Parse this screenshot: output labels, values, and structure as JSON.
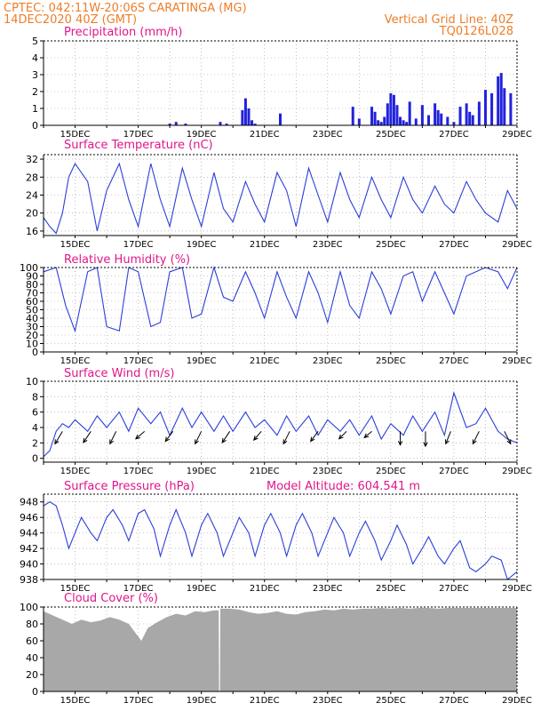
{
  "header": {
    "line1_left": "CPTEC:   042:11W-20:06S   CARATINGA (MG)",
    "line2_left": "14DEC2020 40Z (GMT)",
    "line2_right": "Vertical Grid Line: 40Z",
    "line3_right": "TQ0126L028"
  },
  "colors": {
    "header": "#ee7d2a",
    "title": "#e0168b",
    "line": "#2b3fd8",
    "bar": "#2222dd",
    "cloud": "#a8a8a8",
    "arrow": "#000000"
  },
  "x_tick_labels": [
    "15DEC",
    "17DEC",
    "19DEC",
    "21DEC",
    "23DEC",
    "25DEC",
    "27DEC",
    "29DEC"
  ],
  "chart_data": [
    {
      "id": "precip",
      "type": "bar",
      "title": "Precipitation (mm/h)",
      "x_range": [
        0,
        15
      ],
      "ylim": [
        0,
        5
      ],
      "yticks": [
        0,
        1,
        2,
        3,
        4,
        5
      ],
      "x": [
        4.0,
        4.2,
        4.5,
        5.6,
        5.8,
        6.3,
        6.4,
        6.5,
        6.6,
        6.7,
        7.5,
        9.8,
        10.0,
        10.4,
        10.5,
        10.6,
        10.7,
        10.8,
        10.9,
        11.0,
        11.1,
        11.2,
        11.3,
        11.4,
        11.5,
        11.6,
        11.8,
        12.0,
        12.2,
        12.4,
        12.5,
        12.6,
        12.8,
        13.0,
        13.2,
        13.4,
        13.5,
        13.6,
        13.8,
        14.0,
        14.2,
        14.4,
        14.5,
        14.6,
        14.8
      ],
      "values": [
        0.1,
        0.2,
        0.1,
        0.2,
        0.1,
        0.9,
        1.6,
        1.0,
        0.3,
        0.1,
        0.7,
        1.1,
        0.4,
        1.1,
        0.8,
        0.3,
        0.2,
        0.5,
        1.3,
        1.9,
        1.8,
        1.2,
        0.5,
        0.3,
        0.2,
        1.4,
        0.4,
        1.2,
        0.6,
        1.3,
        0.9,
        0.7,
        0.5,
        0.2,
        1.1,
        1.3,
        0.8,
        0.6,
        1.4,
        2.1,
        1.9,
        2.9,
        3.1,
        2.2,
        1.9
      ]
    },
    {
      "id": "temp",
      "type": "line",
      "title": "Surface Temperature (nC)",
      "x_range": [
        0,
        15
      ],
      "ylim": [
        15,
        33
      ],
      "yticks": [
        16,
        20,
        24,
        28,
        32
      ],
      "x": [
        0.0,
        0.2,
        0.4,
        0.6,
        0.8,
        1.0,
        1.4,
        1.7,
        2.0,
        2.4,
        2.7,
        3.0,
        3.4,
        3.7,
        4.0,
        4.4,
        4.7,
        5.0,
        5.4,
        5.7,
        6.0,
        6.4,
        6.7,
        7.0,
        7.4,
        7.7,
        8.0,
        8.4,
        8.7,
        9.0,
        9.4,
        9.7,
        10.0,
        10.4,
        10.7,
        11.0,
        11.4,
        11.7,
        12.0,
        12.4,
        12.7,
        13.0,
        13.4,
        13.7,
        14.0,
        14.4,
        14.7,
        15.0
      ],
      "values": [
        19,
        17,
        15.5,
        20,
        28,
        31,
        27,
        16,
        25,
        31,
        23,
        17,
        31,
        23,
        17,
        30,
        23,
        17,
        29,
        21,
        18,
        27,
        22,
        18,
        29,
        25,
        17,
        30,
        24,
        18,
        29,
        23,
        19,
        28,
        23,
        19,
        28,
        23,
        20,
        26,
        22,
        20,
        27,
        23,
        20,
        18,
        25,
        21
      ]
    },
    {
      "id": "rh",
      "type": "line",
      "title": "Relative Humidity (%)",
      "x_range": [
        0,
        15
      ],
      "ylim": [
        0,
        100
      ],
      "yticks": [
        0,
        10,
        20,
        30,
        40,
        50,
        60,
        70,
        80,
        90,
        100
      ],
      "x": [
        0.0,
        0.4,
        0.7,
        1.0,
        1.4,
        1.7,
        2.0,
        2.4,
        2.7,
        3.0,
        3.4,
        3.7,
        4.0,
        4.4,
        4.7,
        5.0,
        5.4,
        5.7,
        6.0,
        6.4,
        6.7,
        7.0,
        7.4,
        7.7,
        8.0,
        8.4,
        8.7,
        9.0,
        9.4,
        9.7,
        10.0,
        10.4,
        10.7,
        11.0,
        11.4,
        11.7,
        12.0,
        12.4,
        12.7,
        13.0,
        13.4,
        13.7,
        14.0,
        14.4,
        14.7,
        15.0
      ],
      "values": [
        95,
        100,
        55,
        25,
        95,
        100,
        30,
        25,
        100,
        95,
        30,
        35,
        95,
        100,
        40,
        45,
        100,
        65,
        60,
        95,
        70,
        40,
        95,
        65,
        40,
        95,
        70,
        35,
        95,
        55,
        40,
        95,
        75,
        45,
        90,
        95,
        60,
        95,
        70,
        45,
        90,
        95,
        100,
        95,
        75,
        100
      ]
    },
    {
      "id": "wind",
      "type": "line",
      "title": "Surface Wind (m/s)",
      "x_range": [
        0,
        15
      ],
      "ylim": [
        -0.5,
        10
      ],
      "yticks": [
        0,
        2,
        4,
        6,
        8,
        10
      ],
      "x": [
        0.0,
        0.2,
        0.4,
        0.6,
        0.8,
        1.0,
        1.4,
        1.7,
        2.0,
        2.4,
        2.7,
        3.0,
        3.4,
        3.7,
        4.0,
        4.4,
        4.7,
        5.0,
        5.4,
        5.7,
        6.0,
        6.4,
        6.7,
        7.0,
        7.4,
        7.7,
        8.0,
        8.4,
        8.7,
        9.0,
        9.4,
        9.7,
        10.0,
        10.4,
        10.7,
        11.0,
        11.4,
        11.7,
        12.0,
        12.4,
        12.7,
        13.0,
        13.4,
        13.7,
        14.0,
        14.4,
        14.7,
        15.0
      ],
      "values": [
        0.2,
        1.0,
        3.5,
        4.5,
        4.0,
        5.0,
        3.5,
        5.5,
        4.0,
        6.0,
        3.5,
        6.5,
        4.5,
        6.0,
        3.0,
        6.5,
        4.0,
        6.0,
        3.5,
        5.5,
        3.5,
        6.0,
        4.0,
        5.0,
        3.0,
        5.5,
        3.5,
        5.5,
        3.0,
        5.0,
        3.5,
        5.0,
        3.0,
        5.5,
        2.5,
        4.5,
        3.0,
        5.5,
        3.5,
        6.0,
        3.0,
        8.5,
        4.0,
        4.5,
        6.5,
        3.5,
        2.5,
        2.0
      ],
      "barbs": [
        {
          "x": 0.6,
          "dx": -0.6,
          "dy": -1.0
        },
        {
          "x": 1.5,
          "dx": -0.6,
          "dy": -0.9
        },
        {
          "x": 2.3,
          "dx": -0.5,
          "dy": -1.0
        },
        {
          "x": 3.2,
          "dx": -0.7,
          "dy": -0.6
        },
        {
          "x": 4.1,
          "dx": -0.6,
          "dy": -0.8
        },
        {
          "x": 5.0,
          "dx": -0.5,
          "dy": -1.0
        },
        {
          "x": 5.9,
          "dx": -0.6,
          "dy": -0.9
        },
        {
          "x": 6.9,
          "dx": -0.6,
          "dy": -0.7
        },
        {
          "x": 7.8,
          "dx": -0.5,
          "dy": -1.0
        },
        {
          "x": 8.7,
          "dx": -0.6,
          "dy": -0.8
        },
        {
          "x": 9.6,
          "dx": -0.6,
          "dy": -0.6
        },
        {
          "x": 10.4,
          "dx": -0.6,
          "dy": -0.5
        },
        {
          "x": 11.3,
          "dx": 0.0,
          "dy": -1.1
        },
        {
          "x": 12.1,
          "dx": 0.0,
          "dy": -1.2
        },
        {
          "x": 12.9,
          "dx": -0.4,
          "dy": -1.0
        },
        {
          "x": 13.8,
          "dx": -0.5,
          "dy": -1.0
        },
        {
          "x": 14.6,
          "dx": 0.5,
          "dy": -1.0
        }
      ]
    },
    {
      "id": "press",
      "type": "line",
      "title": "Surface Pressure (hPa)",
      "title2": "Model Altitude: 604.541 m",
      "x_range": [
        0,
        15
      ],
      "ylim": [
        938,
        949
      ],
      "yticks": [
        938,
        940,
        942,
        944,
        946,
        948
      ],
      "x": [
        0.0,
        0.2,
        0.4,
        0.6,
        0.8,
        1.0,
        1.2,
        1.5,
        1.7,
        2.0,
        2.2,
        2.5,
        2.7,
        3.0,
        3.2,
        3.5,
        3.7,
        4.0,
        4.2,
        4.5,
        4.7,
        5.0,
        5.2,
        5.5,
        5.7,
        6.0,
        6.2,
        6.5,
        6.7,
        7.0,
        7.2,
        7.5,
        7.7,
        8.0,
        8.2,
        8.5,
        8.7,
        9.0,
        9.2,
        9.5,
        9.7,
        10.0,
        10.2,
        10.5,
        10.7,
        11.0,
        11.2,
        11.5,
        11.7,
        12.0,
        12.2,
        12.5,
        12.7,
        13.0,
        13.2,
        13.5,
        13.7,
        14.0,
        14.2,
        14.5,
        14.7,
        15.0
      ],
      "values": [
        947.5,
        948,
        947.5,
        945,
        942,
        944,
        946,
        944,
        943,
        946,
        947,
        945,
        943,
        946.5,
        947,
        944.5,
        941,
        945,
        947,
        944,
        941,
        945,
        946.5,
        944,
        941,
        944,
        946,
        944,
        941,
        945,
        946.5,
        944,
        941,
        945,
        946.5,
        944,
        941,
        944,
        946,
        944,
        941,
        944,
        945.5,
        943,
        940.5,
        943,
        945,
        942.5,
        940,
        942,
        943.5,
        941,
        940,
        942,
        943,
        939.5,
        939,
        940,
        941,
        940.5,
        938,
        939
      ]
    },
    {
      "id": "cloud",
      "type": "area",
      "title": "Cloud Cover (%)",
      "x_range": [
        0,
        15
      ],
      "ylim": [
        0,
        100
      ],
      "yticks": [
        0,
        20,
        40,
        60,
        80,
        100
      ],
      "x": [
        0.0,
        0.3,
        0.6,
        0.9,
        1.2,
        1.5,
        1.8,
        2.1,
        2.4,
        2.7,
        2.9,
        3.1,
        3.3,
        3.6,
        3.9,
        4.2,
        4.5,
        4.8,
        5.1,
        5.4,
        5.55,
        5.56,
        5.59,
        5.6,
        5.9,
        6.2,
        6.5,
        6.8,
        7.1,
        7.4,
        7.7,
        8.0,
        8.3,
        8.6,
        8.9,
        9.2,
        9.5,
        9.8,
        10.1,
        10.4,
        10.7,
        11.0,
        11.3,
        11.6,
        11.9,
        12.2,
        12.5,
        12.8,
        13.1,
        13.4,
        13.7,
        14.0,
        14.3,
        14.6,
        15.0
      ],
      "values": [
        95,
        90,
        85,
        80,
        85,
        82,
        84,
        88,
        85,
        80,
        70,
        60,
        75,
        82,
        88,
        92,
        90,
        95,
        94,
        96,
        96,
        0,
        0,
        98,
        98,
        97,
        94,
        92,
        93,
        95,
        92,
        91,
        94,
        95,
        97,
        96,
        98,
        97,
        98,
        98,
        99,
        98,
        99,
        98,
        99,
        99,
        98,
        99,
        99,
        99,
        99,
        99,
        99,
        99,
        99
      ]
    }
  ]
}
